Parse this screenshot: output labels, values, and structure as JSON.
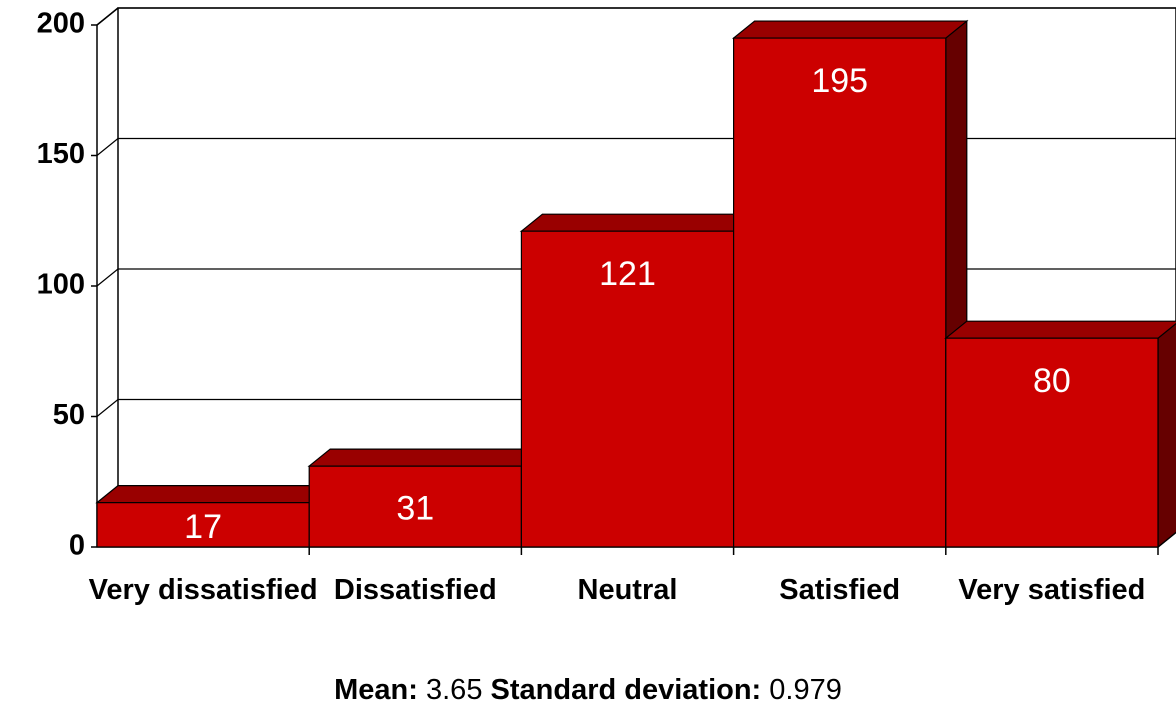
{
  "chart_data": {
    "type": "bar3d",
    "categories": [
      "Very dissatisfied",
      "Dissatisfied",
      "Neutral",
      "Satisfied",
      "Very satisfied"
    ],
    "values": [
      17,
      31,
      121,
      195,
      80
    ],
    "color": "#cc0000",
    "top_color": "#990000",
    "side_color": "#660000",
    "ylim": [
      0,
      200
    ],
    "yticks": [
      0,
      50,
      100,
      150,
      200
    ],
    "grid": true,
    "annotations": [
      {
        "label": "Mean:",
        "value": 3.65
      },
      {
        "label": "Standard deviation:",
        "value": 0.979
      }
    ]
  }
}
